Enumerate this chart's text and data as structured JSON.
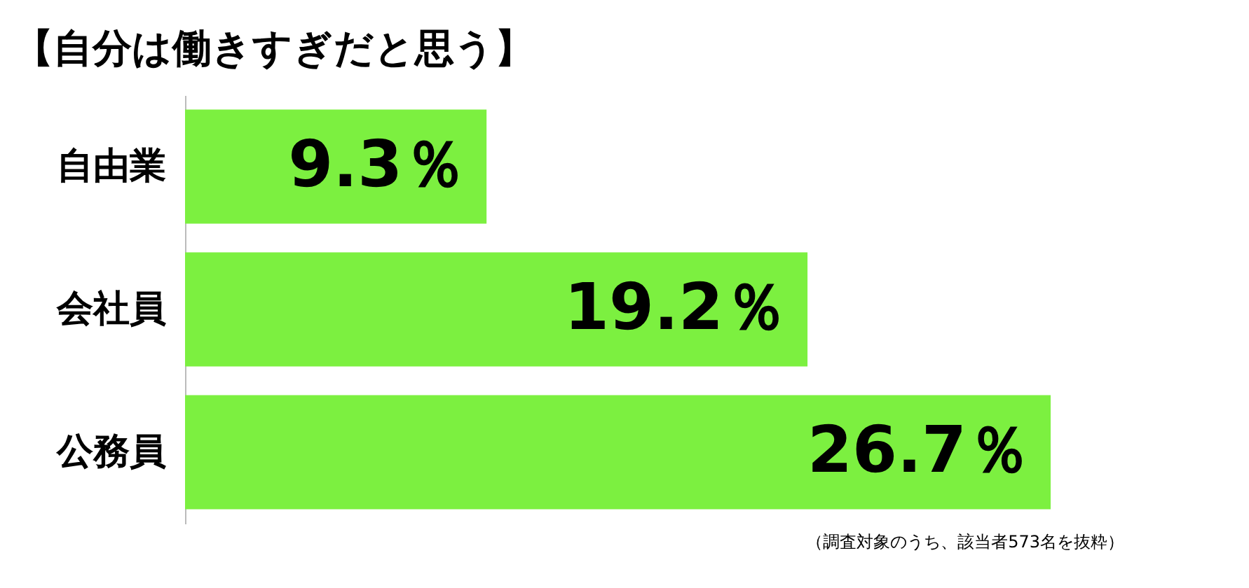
{
  "chart_data": {
    "type": "bar",
    "orientation": "horizontal",
    "title": "【自分は働きすぎだと思う】",
    "categories": [
      "自由業",
      "会社員",
      "公務員"
    ],
    "values": [
      9.3,
      19.2,
      26.7
    ],
    "color": "#7cf040",
    "value_labels": [
      "9.3％",
      "19.2％",
      "26.7％"
    ],
    "annotations": [
      "（調査対象のうち、該当者573名を抜粋）"
    ]
  }
}
